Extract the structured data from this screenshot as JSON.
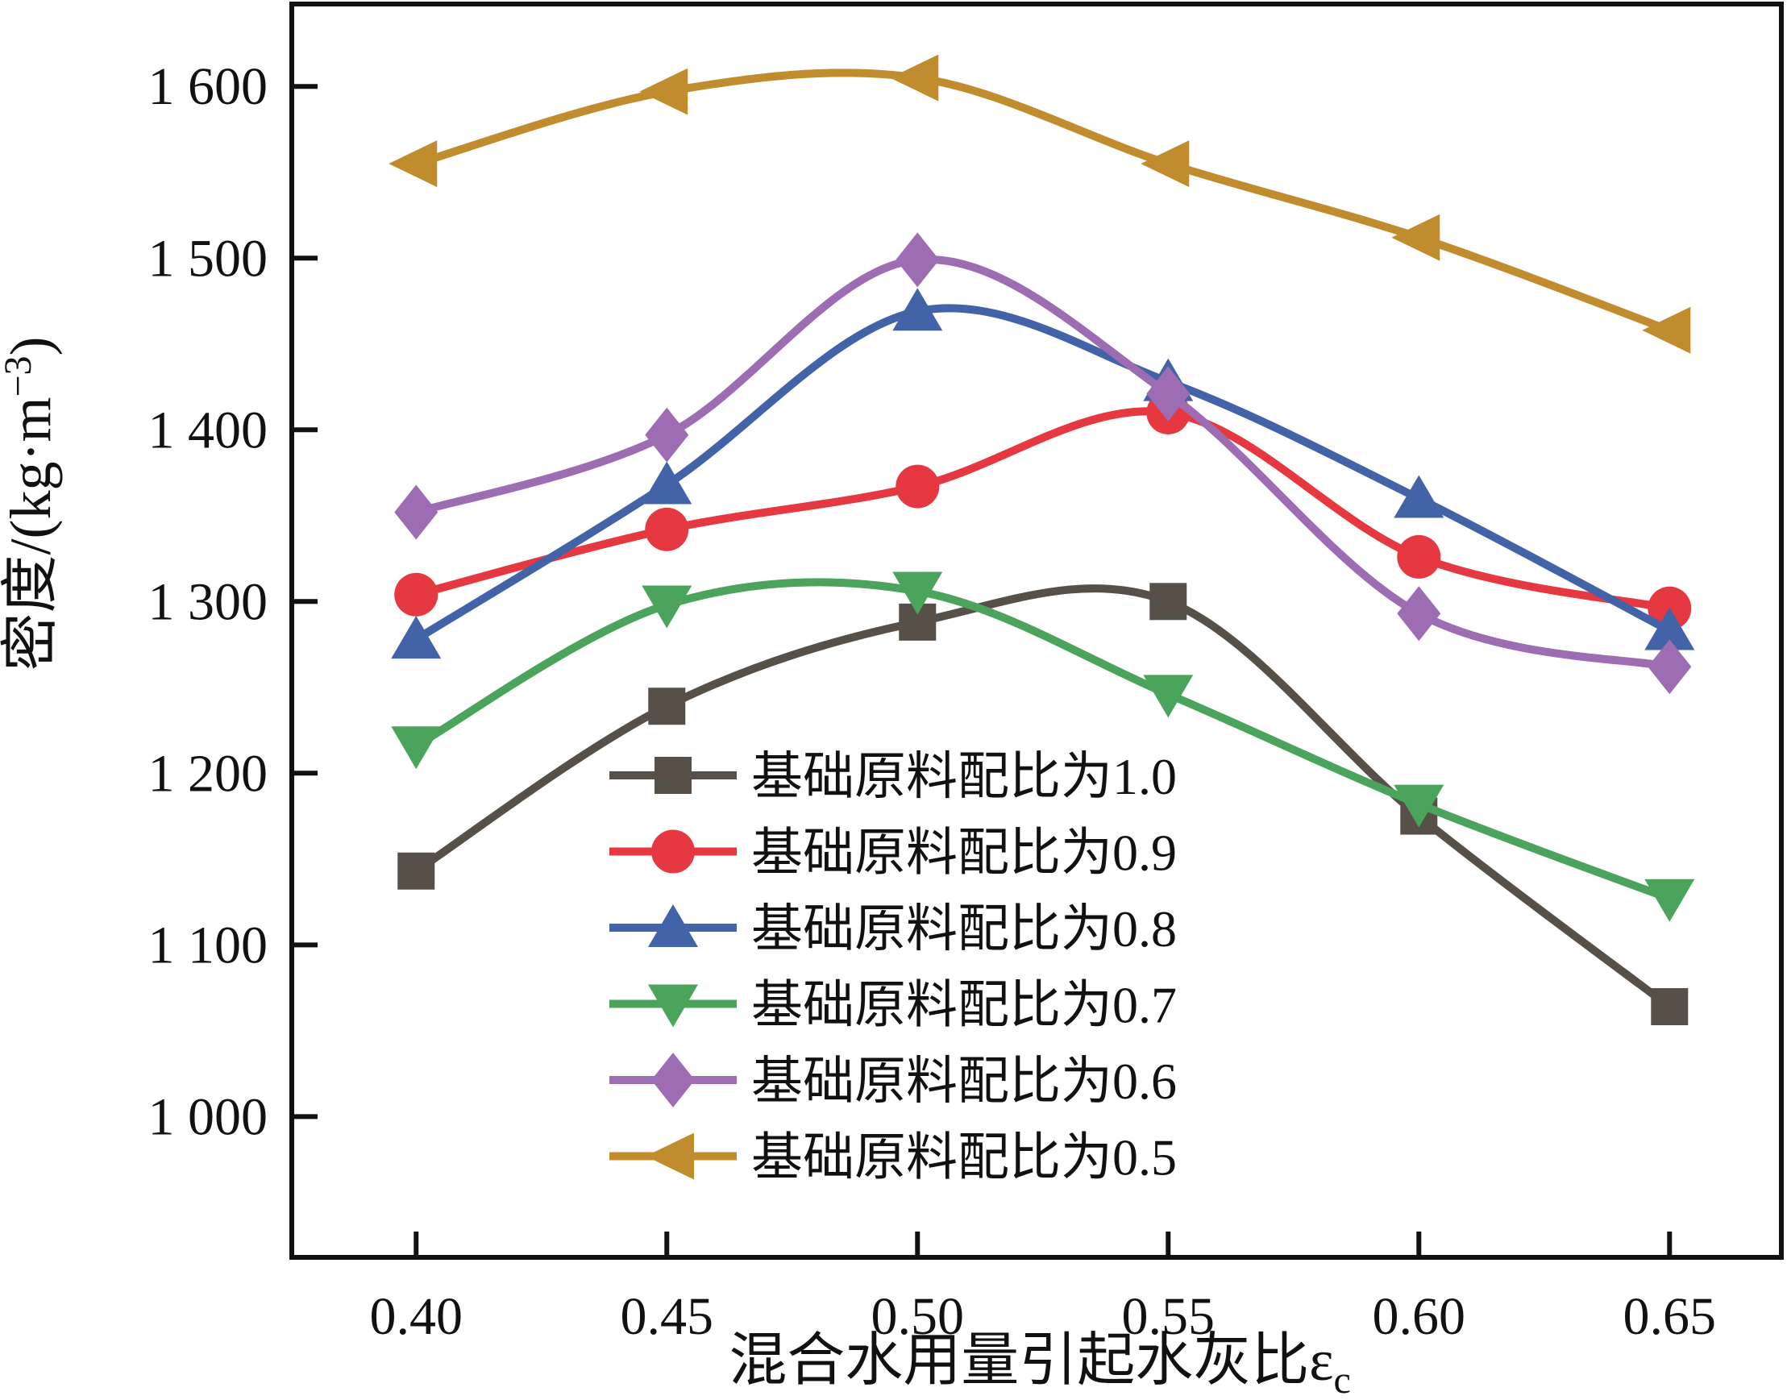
{
  "figure": {
    "background": "#ffffff",
    "text_color": "#111111"
  },
  "chart_data": {
    "type": "line",
    "x": [
      0.4,
      0.45,
      0.5,
      0.55,
      0.6,
      0.65
    ],
    "x_tick_labels": [
      "0.40",
      "0.45",
      "0.50",
      "0.55",
      "0.60",
      "0.65"
    ],
    "y_ticks": [
      1000,
      1100,
      1200,
      1300,
      1400,
      1500,
      1600
    ],
    "y_tick_labels": [
      "1 000",
      "1 100",
      "1 200",
      "1 300",
      "1 400",
      "1 500",
      "1 600"
    ],
    "xlim": [
      0.3752,
      0.6723
    ],
    "ylim": [
      918,
      1648
    ],
    "grid": false,
    "xlabel": {
      "main": "混合水用量引起水灰比ε",
      "sub": "c"
    },
    "ylabel": {
      "prefix": "密度/(kg·m",
      "sup": "−3",
      "suffix": ")"
    },
    "legend_position": "inside-lower-center",
    "series": [
      {
        "name": "基础原料配比为1.0",
        "marker": "square",
        "color": "#575049",
        "values": [
          1143,
          1239,
          1288,
          1300,
          1175,
          1064
        ]
      },
      {
        "name": "基础原料配比为0.9",
        "marker": "circle",
        "color": "#e63840",
        "values": [
          1304,
          1342,
          1367,
          1410,
          1326,
          1296
        ]
      },
      {
        "name": "基础原料配比为0.8",
        "marker": "triangle-up",
        "color": "#4263a7",
        "values": [
          1278,
          1368,
          1469,
          1428,
          1360,
          1283
        ]
      },
      {
        "name": "基础原料配比为0.7",
        "marker": "triangle-down",
        "color": "#4aa45c",
        "values": [
          1216,
          1298,
          1306,
          1246,
          1182,
          1127
        ]
      },
      {
        "name": "基础原料配比为0.6",
        "marker": "diamond",
        "color": "#9e6cb3",
        "values": [
          1352,
          1397,
          1499,
          1421,
          1293,
          1262
        ]
      },
      {
        "name": "基础原料配比为0.5",
        "marker": "triangle-left",
        "color": "#c18c2e",
        "values": [
          1555,
          1597,
          1605,
          1555,
          1512,
          1458
        ]
      }
    ]
  }
}
